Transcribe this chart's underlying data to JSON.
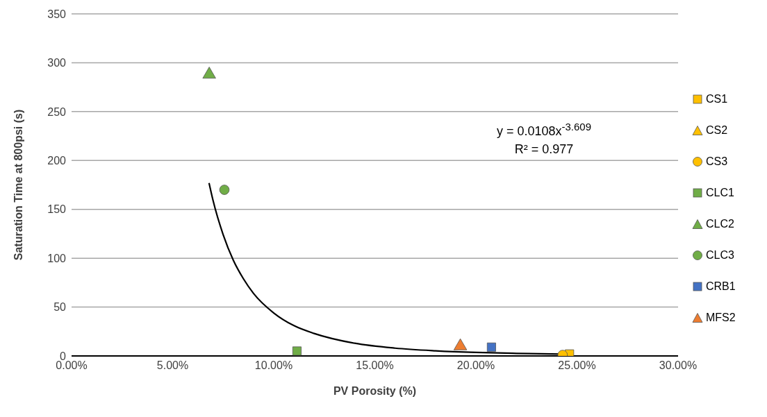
{
  "chart_data": {
    "type": "scatter",
    "xlabel": "PV Porosity (%)",
    "ylabel": "Saturation Time at 800psi (s)",
    "xlim": [
      0,
      0.3
    ],
    "xticks": [
      {
        "value": 0,
        "label": "0.00%"
      },
      {
        "value": 0.05,
        "label": "5.00%"
      },
      {
        "value": 0.1,
        "label": "10.00%"
      },
      {
        "value": 0.15,
        "label": "15.00%"
      },
      {
        "value": 0.2,
        "label": "20.00%"
      },
      {
        "value": 0.25,
        "label": "25.00%"
      },
      {
        "value": 0.3,
        "label": "30.00%"
      }
    ],
    "ylim": [
      0,
      350
    ],
    "yticks": [
      0,
      50,
      100,
      150,
      200,
      250,
      300,
      350
    ],
    "grid": "y",
    "legend": "right",
    "annotations": [
      "y = 0.0108x$^{-3.609}$",
      "R² = 0.977"
    ],
    "series": [
      {
        "name": "CS1",
        "color": "#ffc000",
        "marker": "square",
        "x": [
          0.2463
        ],
        "values": [
          2
        ]
      },
      {
        "name": "CS2",
        "color": "#ffc000",
        "marker": "triangle",
        "x": [
          null
        ],
        "values": [
          null
        ]
      },
      {
        "name": "CS3",
        "color": "#ffc000",
        "marker": "circle",
        "x": [
          0.2429
        ],
        "values": [
          1
        ]
      },
      {
        "name": "CLC1",
        "color": "#70ad47",
        "marker": "square",
        "x": [
          0.1115
        ],
        "values": [
          5
        ]
      },
      {
        "name": "CLC2",
        "color": "#70ad47",
        "marker": "triangle",
        "x": [
          0.0681
        ],
        "values": [
          288
        ]
      },
      {
        "name": "CLC3",
        "color": "#70ad47",
        "marker": "circle",
        "x": [
          0.0756
        ],
        "values": [
          170
        ]
      },
      {
        "name": "CRB1",
        "color": "#4472c4",
        "marker": "square",
        "x": [
          0.2077
        ],
        "values": [
          9
        ]
      },
      {
        "name": "MFS2",
        "color": "#ed7d31",
        "marker": "triangle",
        "x": [
          0.1923
        ],
        "values": [
          10
        ]
      },
      {
        "type": "line",
        "color": "#000000",
        "marker": "none",
        "x": [
          0.068,
          0.07,
          0.075,
          0.08,
          0.085,
          0.09,
          0.1,
          0.11,
          0.12,
          0.14,
          0.16,
          0.18,
          0.2,
          0.22,
          0.248
        ],
        "values": [
          177,
          159,
          124,
          98,
          79,
          64,
          44,
          31,
          23,
          13,
          8,
          5.3,
          3.6,
          2.6,
          1.7
        ]
      }
    ]
  }
}
